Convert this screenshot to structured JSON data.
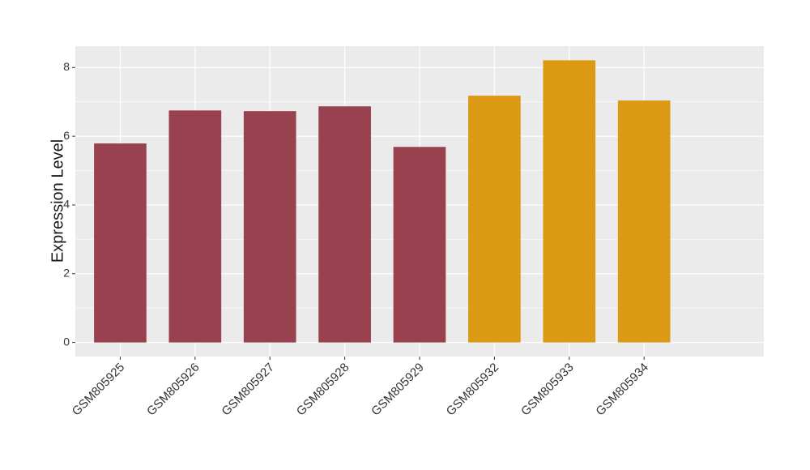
{
  "chart_data": {
    "type": "bar",
    "y_label": "Expression Level",
    "categories": [
      "GSM805925",
      "GSM805926",
      "GSM805927",
      "GSM805928",
      "GSM805929",
      "GSM805932",
      "GSM805933",
      "GSM805934"
    ],
    "values": [
      5.79,
      6.75,
      6.73,
      6.87,
      5.69,
      7.18,
      8.21,
      7.04
    ],
    "colors": [
      "#99414f",
      "#99414f",
      "#99414f",
      "#99414f",
      "#99414f",
      "#dc9914",
      "#dc9914",
      "#dc9914"
    ],
    "ylim": [
      -0.41,
      8.62
    ],
    "yticks": [
      0,
      2,
      4,
      6,
      8
    ],
    "grid": true
  }
}
